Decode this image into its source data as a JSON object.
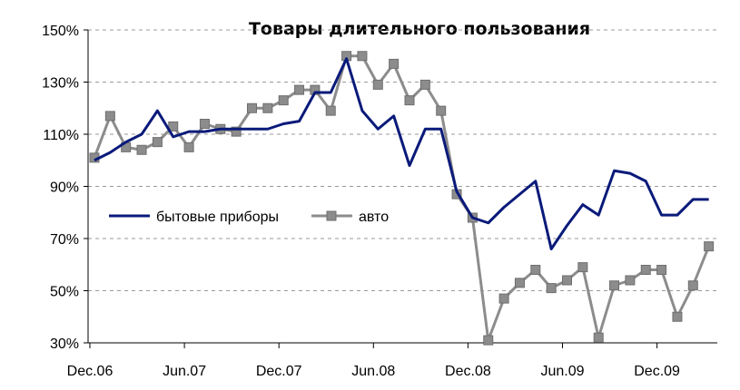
{
  "chart_data": {
    "type": "line",
    "title": "Товары длительного пользования",
    "xlabel": "",
    "ylabel": "",
    "ylim": [
      30,
      150
    ],
    "y_ticks": [
      "30%",
      "50%",
      "70%",
      "90%",
      "110%",
      "130%",
      "150%"
    ],
    "y_tick_values": [
      30,
      50,
      70,
      90,
      110,
      130,
      150
    ],
    "x_tick_labels": [
      "Dec.06",
      "Jun.07",
      "Dec.07",
      "Jun.08",
      "Dec.08",
      "Jun.09",
      "Dec.09"
    ],
    "x_tick_index": [
      0,
      6,
      12,
      18,
      24,
      30,
      36
    ],
    "grid": "horizontal dashed",
    "legend_position": "middle-left",
    "series": [
      {
        "name": "бытовые приборы",
        "color": "#0a1a7a",
        "marker": "none",
        "values": [
          100,
          103,
          107,
          110,
          119,
          109,
          111,
          111,
          112,
          112,
          112,
          112,
          114,
          115,
          126,
          126,
          139,
          119,
          112,
          117,
          98,
          112,
          112,
          88,
          78,
          76,
          82,
          87,
          92,
          66,
          75,
          83,
          79,
          96,
          95,
          92,
          79,
          79,
          85,
          85
        ]
      },
      {
        "name": "авто",
        "color": "#8c8c8c",
        "marker": "square",
        "values": [
          101,
          117,
          105,
          104,
          107,
          113,
          105,
          114,
          112,
          111,
          120,
          120,
          123,
          127,
          127,
          119,
          140,
          140,
          129,
          137,
          123,
          129,
          119,
          87,
          78,
          31,
          47,
          53,
          58,
          51,
          54,
          59,
          32,
          52,
          54,
          58,
          58,
          40,
          52,
          67
        ]
      }
    ]
  }
}
